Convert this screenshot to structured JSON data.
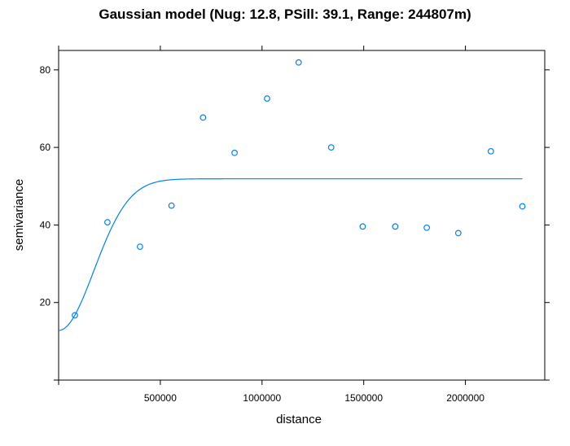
{
  "chart_data": {
    "type": "scatter",
    "title": "Gaussian model (Nug: 12.8, PSill: 39.1, Range: 244807m)",
    "xlabel": "distance",
    "ylabel": "semivariance",
    "xlim": [
      0,
      2390000
    ],
    "ylim": [
      0,
      85
    ],
    "x_ticks": [
      500000,
      1000000,
      1500000,
      2000000
    ],
    "x_tick_labels": [
      "500000",
      "1000000",
      "1500000",
      "2000000"
    ],
    "y_ticks": [
      20,
      40,
      60,
      80
    ],
    "y_tick_labels": [
      "20",
      "40",
      "60",
      "80"
    ],
    "grid": false,
    "color": "#0080ff",
    "points": [
      {
        "x": 80000,
        "y": 16.7
      },
      {
        "x": 240000,
        "y": 40.7
      },
      {
        "x": 400000,
        "y": 34.4
      },
      {
        "x": 555000,
        "y": 45.0
      },
      {
        "x": 710000,
        "y": 67.7
      },
      {
        "x": 865000,
        "y": 58.6
      },
      {
        "x": 1025000,
        "y": 72.6
      },
      {
        "x": 1180000,
        "y": 81.9
      },
      {
        "x": 1340000,
        "y": 60.0
      },
      {
        "x": 1495000,
        "y": 39.6
      },
      {
        "x": 1655000,
        "y": 39.6
      },
      {
        "x": 1810000,
        "y": 39.3
      },
      {
        "x": 1965000,
        "y": 37.9
      },
      {
        "x": 2125000,
        "y": 59.0
      },
      {
        "x": 2280000,
        "y": 44.8
      }
    ],
    "model": {
      "type": "Gaussian",
      "nugget": 12.8,
      "psill": 39.1,
      "range": 244807,
      "x_max": 2280000
    }
  }
}
